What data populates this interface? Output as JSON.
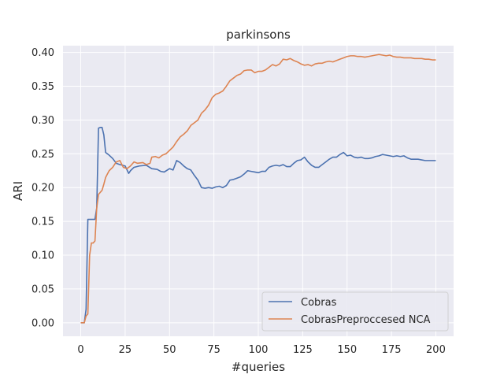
{
  "chart_data": {
    "type": "line",
    "title": "parkinsons",
    "xlabel": "#queries",
    "ylabel": "ARI",
    "xlim": [
      -10,
      210
    ],
    "ylim": [
      -0.02,
      0.41
    ],
    "xticks": [
      0,
      25,
      50,
      75,
      100,
      125,
      150,
      175,
      200
    ],
    "yticks": [
      0.0,
      0.05,
      0.1,
      0.15,
      0.2,
      0.25,
      0.3,
      0.35,
      0.4
    ],
    "xtick_labels": [
      "0",
      "25",
      "50",
      "75",
      "100",
      "125",
      "150",
      "175",
      "200"
    ],
    "ytick_labels": [
      "0.00",
      "0.05",
      "0.10",
      "0.15",
      "0.20",
      "0.25",
      "0.30",
      "0.35",
      "0.40"
    ],
    "grid": true,
    "legend_position": "lower-right",
    "series": [
      {
        "name": "Cobras",
        "color": "#4c72b0",
        "x": [
          0,
          2,
          3,
          4,
          5,
          8,
          9,
          10,
          11,
          12,
          13,
          14,
          16,
          18,
          20,
          22,
          25,
          27,
          28,
          30,
          33,
          37,
          40,
          43,
          45,
          47,
          50,
          52,
          54,
          56,
          58,
          60,
          62,
          64,
          66,
          68,
          70,
          72,
          74,
          76,
          78,
          80,
          82,
          84,
          86,
          88,
          90,
          92,
          94,
          96,
          98,
          100,
          102,
          104,
          106,
          108,
          110,
          112,
          114,
          116,
          118,
          120,
          122,
          124,
          126,
          128,
          130,
          132,
          134,
          136,
          138,
          140,
          142,
          144,
          146,
          148,
          150,
          152,
          154,
          156,
          158,
          160,
          162,
          164,
          166,
          168,
          170,
          172,
          174,
          176,
          178,
          180,
          182,
          184,
          186,
          188,
          190,
          192,
          194,
          196,
          198,
          200
        ],
        "y": [
          0.0,
          0.0,
          0.02,
          0.153,
          0.153,
          0.153,
          0.17,
          0.288,
          0.289,
          0.289,
          0.278,
          0.252,
          0.248,
          0.243,
          0.236,
          0.234,
          0.232,
          0.221,
          0.225,
          0.23,
          0.232,
          0.233,
          0.228,
          0.227,
          0.224,
          0.223,
          0.228,
          0.226,
          0.24,
          0.237,
          0.232,
          0.228,
          0.226,
          0.218,
          0.211,
          0.2,
          0.199,
          0.2,
          0.199,
          0.201,
          0.202,
          0.2,
          0.203,
          0.211,
          0.212,
          0.214,
          0.216,
          0.22,
          0.225,
          0.224,
          0.223,
          0.222,
          0.224,
          0.224,
          0.23,
          0.232,
          0.233,
          0.232,
          0.234,
          0.231,
          0.231,
          0.236,
          0.24,
          0.241,
          0.245,
          0.238,
          0.233,
          0.23,
          0.23,
          0.234,
          0.238,
          0.242,
          0.245,
          0.245,
          0.249,
          0.252,
          0.247,
          0.248,
          0.245,
          0.244,
          0.245,
          0.243,
          0.243,
          0.244,
          0.246,
          0.247,
          0.249,
          0.248,
          0.247,
          0.246,
          0.247,
          0.246,
          0.247,
          0.244,
          0.242,
          0.242,
          0.242,
          0.241,
          0.24,
          0.24,
          0.24,
          0.24
        ]
      },
      {
        "name": "CobrasPreproccesed NCA",
        "color": "#dd8452",
        "x": [
          0,
          2,
          3,
          4,
          5,
          6,
          7,
          8,
          9,
          10,
          11,
          12,
          13,
          14,
          15,
          16,
          18,
          20,
          22,
          24,
          26,
          28,
          30,
          32,
          35,
          37,
          39,
          40,
          42,
          44,
          46,
          48,
          50,
          52,
          54,
          56,
          58,
          60,
          62,
          64,
          66,
          68,
          70,
          72,
          74,
          76,
          78,
          80,
          82,
          84,
          86,
          88,
          90,
          92,
          94,
          96,
          98,
          100,
          102,
          104,
          106,
          108,
          110,
          112,
          114,
          116,
          118,
          120,
          122,
          124,
          126,
          128,
          130,
          132,
          134,
          136,
          138,
          140,
          142,
          144,
          146,
          148,
          150,
          152,
          154,
          156,
          158,
          160,
          162,
          164,
          166,
          168,
          170,
          172,
          174,
          176,
          178,
          180,
          182,
          184,
          186,
          188,
          190,
          192,
          194,
          196,
          198,
          200
        ],
        "y": [
          0.0,
          0.0,
          0.01,
          0.013,
          0.1,
          0.118,
          0.118,
          0.121,
          0.17,
          0.19,
          0.193,
          0.196,
          0.205,
          0.215,
          0.22,
          0.225,
          0.23,
          0.238,
          0.24,
          0.23,
          0.228,
          0.232,
          0.238,
          0.236,
          0.237,
          0.234,
          0.236,
          0.245,
          0.246,
          0.244,
          0.248,
          0.25,
          0.255,
          0.26,
          0.268,
          0.275,
          0.279,
          0.284,
          0.292,
          0.296,
          0.3,
          0.31,
          0.315,
          0.322,
          0.333,
          0.338,
          0.34,
          0.343,
          0.35,
          0.358,
          0.362,
          0.366,
          0.368,
          0.373,
          0.374,
          0.374,
          0.37,
          0.372,
          0.372,
          0.374,
          0.378,
          0.382,
          0.38,
          0.383,
          0.39,
          0.389,
          0.391,
          0.388,
          0.386,
          0.383,
          0.381,
          0.382,
          0.38,
          0.383,
          0.384,
          0.384,
          0.386,
          0.387,
          0.386,
          0.388,
          0.39,
          0.392,
          0.394,
          0.395,
          0.395,
          0.394,
          0.394,
          0.393,
          0.394,
          0.395,
          0.396,
          0.397,
          0.396,
          0.395,
          0.396,
          0.394,
          0.393,
          0.393,
          0.392,
          0.392,
          0.392,
          0.391,
          0.391,
          0.391,
          0.39,
          0.39,
          0.389,
          0.389
        ]
      }
    ]
  }
}
